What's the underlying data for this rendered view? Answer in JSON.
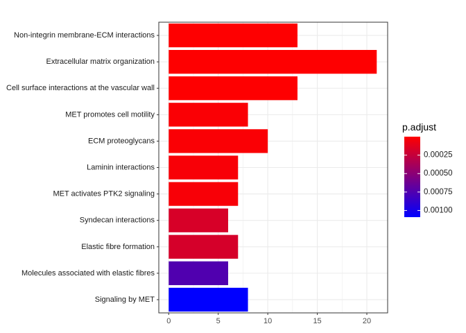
{
  "chart_data": {
    "type": "bar",
    "orientation": "horizontal",
    "categories": [
      "Non-integrin membrane-ECM interactions",
      "Extracellular matrix organization",
      "Cell surface interactions at the vascular wall",
      "MET promotes cell motility",
      "ECM proteoglycans",
      "Laminin interactions",
      "MET activates PTK2 signaling",
      "Syndecan interactions",
      "Elastic fibre formation",
      "Molecules associated with elastic fibres",
      "Signaling by MET"
    ],
    "values": [
      13,
      21,
      13,
      8,
      10,
      7,
      7,
      6,
      7,
      6,
      8
    ],
    "p_adjust": [
      5e-06,
      3e-06,
      6e-06,
      2e-05,
      2e-05,
      3e-05,
      3e-05,
      0.00017,
      0.00018,
      0.00075,
      0.00109
    ],
    "xlim": [
      -1,
      22.1
    ],
    "x_ticks": [
      0,
      5,
      10,
      15,
      20
    ],
    "x_tick_labels": [
      "0",
      "5",
      "10",
      "15",
      "20"
    ],
    "xlabel": "",
    "ylabel": "",
    "title": "",
    "grid": true,
    "legend": {
      "title": "p.adjust",
      "position": "right",
      "type": "colorbar",
      "range": [
        0.0,
        0.00109
      ],
      "ticks": [
        0.00025,
        0.0005,
        0.00075,
        0.001
      ],
      "tick_labels": [
        "0.00025",
        "0.00050",
        "0.00075",
        "0.00100"
      ],
      "low_color": "#ff0000",
      "high_color": "#0000ff"
    },
    "colors": {
      "low_p": "#ff0000",
      "high_p": "#0000ff",
      "grid": "#ebebeb",
      "panel_border": "#333333"
    }
  }
}
